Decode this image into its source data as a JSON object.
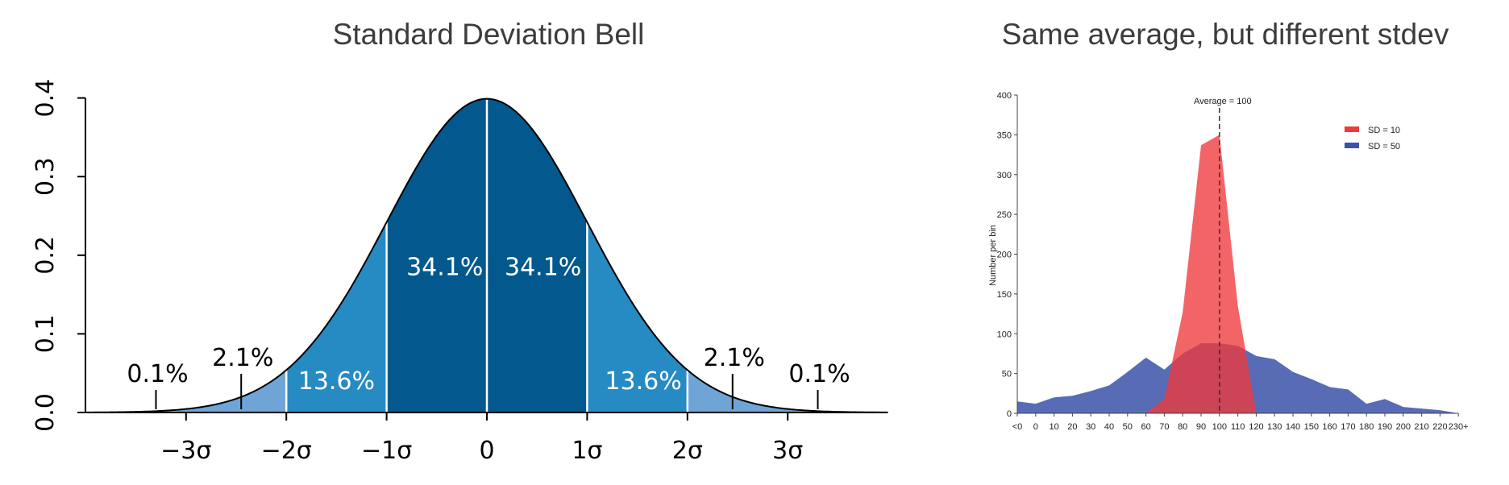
{
  "left": {
    "title": "Standard Deviation Bell"
  },
  "right": {
    "title": "Same average, but different stdev"
  },
  "chart_data": [
    {
      "type": "area",
      "title": "Standard Deviation Bell",
      "xlabel": "",
      "ylabel": "",
      "xlim": [
        -4,
        4
      ],
      "ylim": [
        0,
        0.4
      ],
      "x_ticks": [
        -3,
        -2,
        -1,
        0,
        1,
        2,
        3
      ],
      "x_tick_labels": [
        "−3σ",
        "−2σ",
        "−1σ",
        "0",
        "1σ",
        "2σ",
        "3σ"
      ],
      "y_ticks": [
        0.0,
        0.1,
        0.2,
        0.3,
        0.4
      ],
      "y_tick_labels": [
        "0.0",
        "0.1",
        "0.2",
        "0.3",
        "0.4"
      ],
      "curve": "normal pdf, mean 0, sd 1",
      "regions": [
        {
          "from": -4,
          "to": -3,
          "percent": 0.1,
          "label": "0.1%",
          "color": "#6fa5d6"
        },
        {
          "from": -3,
          "to": -2,
          "percent": 2.1,
          "label": "2.1%",
          "color": "#6fa5d6"
        },
        {
          "from": -2,
          "to": -1,
          "percent": 13.6,
          "label": "13.6%",
          "color": "#268ac3"
        },
        {
          "from": -1,
          "to": 0,
          "percent": 34.1,
          "label": "34.1%",
          "color": "#03598e"
        },
        {
          "from": 0,
          "to": 1,
          "percent": 34.1,
          "label": "34.1%",
          "color": "#03598e"
        },
        {
          "from": 1,
          "to": 2,
          "percent": 13.6,
          "label": "13.6%",
          "color": "#268ac3"
        },
        {
          "from": 2,
          "to": 3,
          "percent": 2.1,
          "label": "2.1%",
          "color": "#6fa5d6"
        },
        {
          "from": 3,
          "to": 4,
          "percent": 0.1,
          "label": "0.1%",
          "color": "#6fa5d6"
        }
      ],
      "outer_labels": [
        {
          "x": -3.3,
          "label": "0.1%"
        },
        {
          "x": -2.45,
          "label": "2.1%"
        },
        {
          "x": 2.45,
          "label": "2.1%"
        },
        {
          "x": 3.3,
          "label": "0.1%"
        }
      ],
      "inner_labels": [
        {
          "x": -1.5,
          "y": 0.04,
          "label": "13.6%"
        },
        {
          "x": -0.42,
          "y": 0.185,
          "label": "34.1%"
        },
        {
          "x": 0.56,
          "y": 0.185,
          "label": "34.1%"
        },
        {
          "x": 1.56,
          "y": 0.04,
          "label": "13.6%"
        }
      ],
      "grid": false
    },
    {
      "type": "area",
      "title": "Same average, but different stdev",
      "xlabel": "",
      "ylabel": "Number per bin",
      "ylim": [
        0,
        400
      ],
      "y_ticks": [
        0,
        50,
        100,
        150,
        200,
        250,
        300,
        350,
        400
      ],
      "categories": [
        "<0",
        "0",
        "10",
        "20",
        "30",
        "40",
        "50",
        "60",
        "70",
        "80",
        "90",
        "100",
        "110",
        "120",
        "130",
        "140",
        "150",
        "160",
        "170",
        "180",
        "190",
        "200",
        "210",
        "220",
        "230+"
      ],
      "series": [
        {
          "name": "SD = 10",
          "color": "#f0393c",
          "values": [
            null,
            null,
            null,
            null,
            null,
            null,
            null,
            0,
            18,
            127,
            337,
            350,
            135,
            0,
            null,
            null,
            null,
            null,
            null,
            null,
            null,
            null,
            null,
            null,
            null
          ]
        },
        {
          "name": "SD = 50",
          "color": "#3a52a8",
          "values": [
            15,
            12,
            20,
            22,
            28,
            35,
            52,
            70,
            55,
            75,
            88,
            88,
            85,
            72,
            68,
            52,
            43,
            33,
            30,
            12,
            18,
            8,
            6,
            4,
            0
          ]
        }
      ],
      "average_line": {
        "x": 100,
        "label": "Average = 100"
      },
      "legend": "top-right",
      "grid": false
    }
  ]
}
